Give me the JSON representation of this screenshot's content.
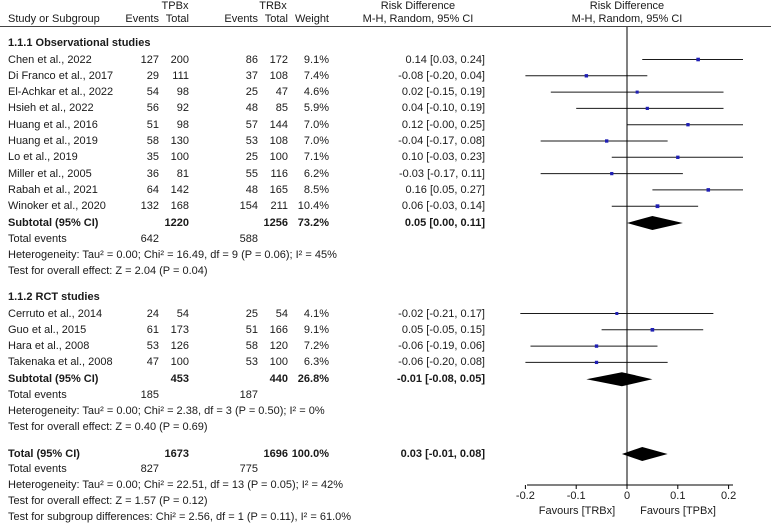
{
  "header": {
    "group1": "TPBx",
    "group2": "TRBx",
    "study_col": "Study or Subgroup",
    "events": "Events",
    "total": "Total",
    "weight": "Weight",
    "rd_title": "Risk Difference",
    "rd_method": "M-H, Random, 95% CI",
    "plot_title": "Risk Difference",
    "plot_method": "M-H, Random, 95% CI"
  },
  "subgroups": [
    {
      "title": "1.1.1 Observational studies",
      "studies": [
        {
          "name": "Chen et al., 2022",
          "e1": "127",
          "n1": "200",
          "e2": "86",
          "n2": "172",
          "weight": "9.1%",
          "ci_text": "0.14 [0.03, 0.24]"
        },
        {
          "name": "Di Franco et al., 2017",
          "e1": "29",
          "n1": "111",
          "e2": "37",
          "n2": "108",
          "weight": "7.4%",
          "ci_text": "-0.08 [-0.20, 0.04]"
        },
        {
          "name": "El-Achkar et al., 2022",
          "e1": "54",
          "n1": "98",
          "e2": "25",
          "n2": "47",
          "weight": "4.6%",
          "ci_text": "0.02 [-0.15, 0.19]"
        },
        {
          "name": "Hsieh et al., 2022",
          "e1": "56",
          "n1": "92",
          "e2": "48",
          "n2": "85",
          "weight": "5.9%",
          "ci_text": "0.04 [-0.10, 0.19]"
        },
        {
          "name": "Huang et al., 2016",
          "e1": "51",
          "n1": "98",
          "e2": "57",
          "n2": "144",
          "weight": "7.0%",
          "ci_text": "0.12 [-0.00, 0.25]"
        },
        {
          "name": "Huang et al., 2019",
          "e1": "58",
          "n1": "130",
          "e2": "53",
          "n2": "108",
          "weight": "7.0%",
          "ci_text": "-0.04 [-0.17, 0.08]"
        },
        {
          "name": "Lo et al., 2019",
          "e1": "35",
          "n1": "100",
          "e2": "25",
          "n2": "100",
          "weight": "7.1%",
          "ci_text": "0.10 [-0.03, 0.23]"
        },
        {
          "name": "Miller et al., 2005",
          "e1": "36",
          "n1": "81",
          "e2": "55",
          "n2": "116",
          "weight": "6.2%",
          "ci_text": "-0.03 [-0.17, 0.11]"
        },
        {
          "name": "Rabah et al., 2021",
          "e1": "64",
          "n1": "142",
          "e2": "48",
          "n2": "165",
          "weight": "8.5%",
          "ci_text": "0.16 [0.05, 0.27]"
        },
        {
          "name": "Winoker et al., 2020",
          "e1": "132",
          "n1": "168",
          "e2": "154",
          "n2": "211",
          "weight": "10.4%",
          "ci_text": "0.06 [-0.03, 0.14]"
        }
      ],
      "subtotal": {
        "label": "Subtotal (95% CI)",
        "n1": "1220",
        "n2": "1256",
        "weight": "73.2%",
        "ci_text": "0.05 [0.00, 0.11]"
      },
      "total_events": {
        "label": "Total events",
        "e1": "642",
        "e2": "588"
      },
      "heterogeneity": "Heterogeneity: Tau² = 0.00; Chi² = 16.49, df = 9 (P = 0.06); I² = 45%",
      "overall": "Test for overall effect: Z = 2.04 (P = 0.04)"
    },
    {
      "title": "1.1.2 RCT studies",
      "studies": [
        {
          "name": "Cerruto et al., 2014",
          "e1": "24",
          "n1": "54",
          "e2": "25",
          "n2": "54",
          "weight": "4.1%",
          "ci_text": "-0.02 [-0.21, 0.17]"
        },
        {
          "name": "Guo et al., 2015",
          "e1": "61",
          "n1": "173",
          "e2": "51",
          "n2": "166",
          "weight": "9.1%",
          "ci_text": "0.05 [-0.05, 0.15]"
        },
        {
          "name": "Hara et al., 2008",
          "e1": "53",
          "n1": "126",
          "e2": "58",
          "n2": "120",
          "weight": "7.2%",
          "ci_text": "-0.06 [-0.19, 0.06]"
        },
        {
          "name": "Takenaka et al., 2008",
          "e1": "47",
          "n1": "100",
          "e2": "53",
          "n2": "100",
          "weight": "6.3%",
          "ci_text": "-0.06 [-0.20, 0.08]"
        }
      ],
      "subtotal": {
        "label": "Subtotal (95% CI)",
        "n1": "453",
        "n2": "440",
        "weight": "26.8%",
        "ci_text": "-0.01 [-0.08, 0.05]"
      },
      "total_events": {
        "label": "Total events",
        "e1": "185",
        "e2": "187"
      },
      "heterogeneity": "Heterogeneity: Tau² = 0.00; Chi² = 2.38, df = 3 (P = 0.50); I² = 0%",
      "overall": "Test for overall effect: Z = 0.40 (P = 0.69)"
    }
  ],
  "total": {
    "label": "Total (95% CI)",
    "n1": "1673",
    "n2": "1696",
    "weight": "100.0%",
    "ci_text": "0.03 [-0.01, 0.08]",
    "events_label": "Total events",
    "e1": "827",
    "e2": "775",
    "heterogeneity": "Heterogeneity: Tau² = 0.00; Chi² = 22.51, df = 13 (P = 0.05); I² = 42%",
    "overall": "Test for overall effect: Z = 1.57 (P = 0.12)",
    "subgroup_diff": "Test for subgroup differences: Chi² = 2.56, df = 1 (P = 0.11), I² = 61.0%"
  },
  "axis": {
    "favours_left": "Favours [TRBx]",
    "favours_right": "Favours [TPBx]"
  },
  "colors": {
    "point": "#1f1fb4",
    "line": "#1a1a1a",
    "diamond": "#000000",
    "text": "#1a1a1a"
  },
  "chart_data": {
    "type": "forest",
    "title": "Risk Difference, M-H, Random, 95% CI",
    "xlabel": "",
    "xlim": [
      -0.25,
      0.25
    ],
    "ticks": [
      -0.2,
      -0.1,
      0,
      0.1,
      0.2
    ],
    "tick_labels": [
      "-0.2",
      "-0.1",
      "0",
      "0.1",
      "0.2"
    ],
    "studies": [
      {
        "name": "Chen et al., 2022",
        "rd": 0.14,
        "lo": 0.03,
        "hi": 0.24,
        "weight": 9.1
      },
      {
        "name": "Di Franco et al., 2017",
        "rd": -0.08,
        "lo": -0.2,
        "hi": 0.04,
        "weight": 7.4
      },
      {
        "name": "El-Achkar et al., 2022",
        "rd": 0.02,
        "lo": -0.15,
        "hi": 0.19,
        "weight": 4.6
      },
      {
        "name": "Hsieh et al., 2022",
        "rd": 0.04,
        "lo": -0.1,
        "hi": 0.19,
        "weight": 5.9
      },
      {
        "name": "Huang et al., 2016",
        "rd": 0.12,
        "lo": -0.0,
        "hi": 0.25,
        "weight": 7.0
      },
      {
        "name": "Huang et al., 2019",
        "rd": -0.04,
        "lo": -0.17,
        "hi": 0.08,
        "weight": 7.0
      },
      {
        "name": "Lo et al., 2019",
        "rd": 0.1,
        "lo": -0.03,
        "hi": 0.23,
        "weight": 7.1
      },
      {
        "name": "Miller et al., 2005",
        "rd": -0.03,
        "lo": -0.17,
        "hi": 0.11,
        "weight": 6.2
      },
      {
        "name": "Rabah et al., 2021",
        "rd": 0.16,
        "lo": 0.05,
        "hi": 0.27,
        "weight": 8.5
      },
      {
        "name": "Winoker et al., 2020",
        "rd": 0.06,
        "lo": -0.03,
        "hi": 0.14,
        "weight": 10.4
      },
      {
        "name": "Cerruto et al., 2014",
        "rd": -0.02,
        "lo": -0.21,
        "hi": 0.17,
        "weight": 4.1
      },
      {
        "name": "Guo et al., 2015",
        "rd": 0.05,
        "lo": -0.05,
        "hi": 0.15,
        "weight": 9.1
      },
      {
        "name": "Hara et al., 2008",
        "rd": -0.06,
        "lo": -0.19,
        "hi": 0.06,
        "weight": 7.2
      },
      {
        "name": "Takenaka et al., 2008",
        "rd": -0.06,
        "lo": -0.2,
        "hi": 0.08,
        "weight": 6.3
      }
    ],
    "summaries": [
      {
        "name": "Subtotal observational",
        "rd": 0.05,
        "lo": 0.0,
        "hi": 0.11
      },
      {
        "name": "Subtotal RCT",
        "rd": -0.01,
        "lo": -0.08,
        "hi": 0.05
      },
      {
        "name": "Total",
        "rd": 0.03,
        "lo": -0.01,
        "hi": 0.08
      }
    ]
  }
}
